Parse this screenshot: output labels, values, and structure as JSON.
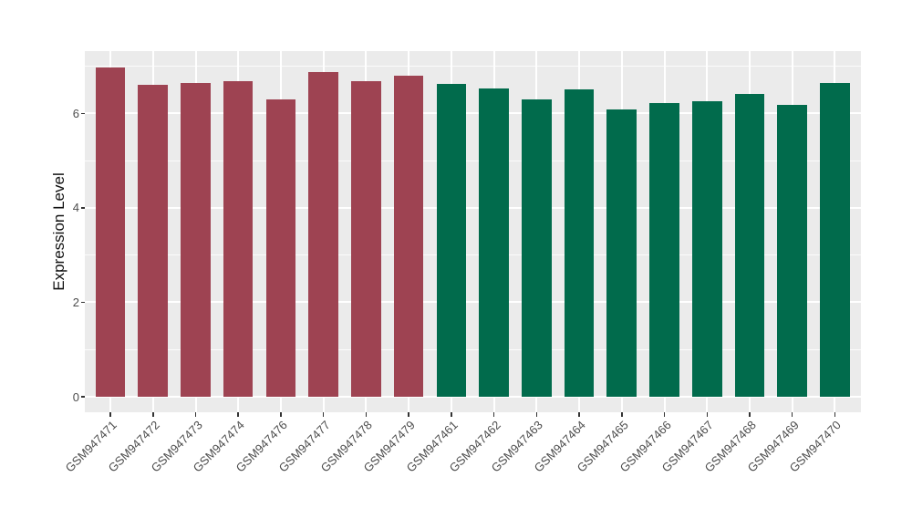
{
  "figure": {
    "background": "#FFFFFF"
  },
  "chart_data": {
    "type": "bar",
    "title": "",
    "xlabel": "",
    "ylabel": "Expression Level",
    "ylim": [
      0,
      7.32
    ],
    "yticks": [
      0,
      2,
      4,
      6
    ],
    "yticks_minor": [
      1,
      3,
      5,
      7
    ],
    "grid": "on",
    "legend": "none",
    "panel_background": "#EBEBEB",
    "gridline_color": "#FFFFFF",
    "axis_text_color": "#4D4D4D",
    "tick_mark_color": "#333333",
    "categories": [
      "GSM947471",
      "GSM947472",
      "GSM947473",
      "GSM947474",
      "GSM947476",
      "GSM947477",
      "GSM947478",
      "GSM947479",
      "GSM947461",
      "GSM947462",
      "GSM947463",
      "GSM947464",
      "GSM947465",
      "GSM947466",
      "GSM947467",
      "GSM947468",
      "GSM947469",
      "GSM947470"
    ],
    "values": [
      6.97,
      6.6,
      6.65,
      6.69,
      6.3,
      6.87,
      6.68,
      6.79,
      6.62,
      6.52,
      6.3,
      6.5,
      6.09,
      6.21,
      6.25,
      6.41,
      6.18,
      6.64
    ],
    "bar_groups": [
      "maroon",
      "maroon",
      "maroon",
      "maroon",
      "maroon",
      "maroon",
      "maroon",
      "maroon",
      "green",
      "green",
      "green",
      "green",
      "green",
      "green",
      "green",
      "green",
      "green",
      "green"
    ],
    "group_colors": {
      "maroon": "#9E4352",
      "green": "#016B4C"
    }
  }
}
